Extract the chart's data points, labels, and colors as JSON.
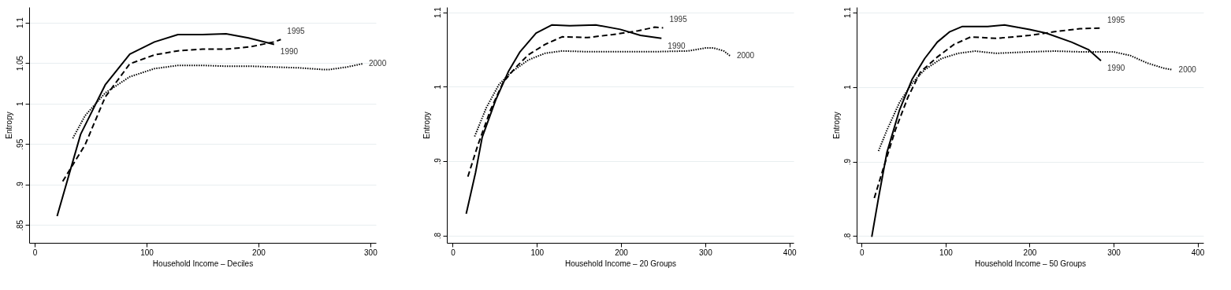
{
  "chart_data": [
    {
      "type": "line",
      "xlabel": "Household Income – Deciles",
      "ylabel": "Entropy",
      "xlim": [
        -5,
        305
      ],
      "ylim": [
        0.828,
        1.119
      ],
      "xticks": [
        0,
        100,
        200,
        300
      ],
      "yticks": [
        {
          "value": 0.85,
          "label": ".85"
        },
        {
          "value": 0.9,
          "label": ".9"
        },
        {
          "value": 0.95,
          "label": ".95"
        },
        1,
        1.05,
        1.1
      ],
      "grid": "y",
      "legend": false,
      "series": [
        {
          "name": "1990",
          "color": "#000000",
          "line_style": "solid",
          "x": [
            20,
            41,
            63,
            85,
            107,
            128,
            150,
            171,
            191,
            214
          ],
          "values": [
            0.861,
            0.962,
            1.023,
            1.061,
            1.076,
            1.085,
            1.085,
            1.086,
            1.081,
            1.073
          ]
        },
        {
          "name": "1995",
          "color": "#000000",
          "line_style": "dashed",
          "x": [
            25,
            45,
            63,
            85,
            107,
            128,
            150,
            171,
            193,
            214,
            220
          ],
          "values": [
            0.904,
            0.949,
            1.008,
            1.049,
            1.06,
            1.065,
            1.067,
            1.067,
            1.07,
            1.076,
            1.079
          ]
        },
        {
          "name": "2000",
          "color": "#000000",
          "line_style": "dotted",
          "x": [
            34,
            45,
            63,
            85,
            107,
            128,
            150,
            171,
            193,
            214,
            236,
            257,
            264,
            279,
            293
          ],
          "values": [
            0.957,
            0.985,
            1.013,
            1.033,
            1.043,
            1.047,
            1.047,
            1.046,
            1.046,
            1.045,
            1.044,
            1.042,
            1.042,
            1.045,
            1.049
          ]
        }
      ]
    },
    {
      "type": "line",
      "xlabel": "Household Income – 20 Groups",
      "ylabel": "Entropy",
      "xlim": [
        -7,
        405
      ],
      "ylim": [
        0.79,
        1.107
      ],
      "xticks": [
        0,
        100,
        200,
        300,
        400
      ],
      "yticks": [
        {
          "value": 0.8,
          "label": ".8"
        },
        {
          "value": 0.9,
          "label": ".9"
        },
        1,
        1.1
      ],
      "grid": "y",
      "legend": false,
      "series": [
        {
          "name": "1990",
          "color": "#000000",
          "line_style": "solid",
          "x": [
            16,
            27,
            35,
            51,
            66,
            80,
            99,
            118,
            139,
            170,
            199,
            223,
            248
          ],
          "values": [
            0.829,
            0.884,
            0.932,
            0.982,
            1.02,
            1.047,
            1.072,
            1.083,
            1.082,
            1.083,
            1.077,
            1.069,
            1.065
          ]
        },
        {
          "name": "1995",
          "color": "#000000",
          "line_style": "dashed",
          "x": [
            18,
            30,
            45,
            60,
            75,
            90,
            110,
            130,
            160,
            190,
            220,
            240,
            250
          ],
          "values": [
            0.879,
            0.922,
            0.969,
            1.006,
            1.026,
            1.043,
            1.057,
            1.067,
            1.066,
            1.07,
            1.075,
            1.08,
            1.079
          ]
        },
        {
          "name": "2000",
          "color": "#000000",
          "line_style": "dotted",
          "x": [
            26,
            40,
            55,
            70,
            90,
            110,
            130,
            160,
            200,
            240,
            280,
            300,
            310,
            322,
            330
          ],
          "values": [
            0.933,
            0.972,
            1.003,
            1.02,
            1.036,
            1.045,
            1.048,
            1.047,
            1.047,
            1.047,
            1.048,
            1.052,
            1.052,
            1.048,
            1.041
          ]
        }
      ]
    },
    {
      "type": "line",
      "xlabel": "Household Income – 50 Groups",
      "ylabel": "Entropy",
      "xlim": [
        -6,
        407
      ],
      "ylim": [
        0.791,
        1.107
      ],
      "xticks": [
        0,
        100,
        200,
        300,
        400
      ],
      "yticks": [
        {
          "value": 0.8,
          "label": ".8"
        },
        {
          "value": 0.9,
          "label": ".9"
        },
        1,
        1.1
      ],
      "grid": "y",
      "legend": false,
      "series": [
        {
          "name": "1990",
          "color": "#000000",
          "line_style": "solid",
          "x": [
            12,
            20,
            30,
            45,
            60,
            75,
            90,
            105,
            120,
            150,
            170,
            200,
            220,
            250,
            270,
            285
          ],
          "values": [
            0.799,
            0.851,
            0.912,
            0.969,
            1.01,
            1.038,
            1.06,
            1.074,
            1.081,
            1.081,
            1.083,
            1.077,
            1.072,
            1.06,
            1.05,
            1.035
          ]
        },
        {
          "name": "1995",
          "color": "#000000",
          "line_style": "dashed",
          "x": [
            15,
            25,
            40,
            55,
            70,
            90,
            110,
            130,
            160,
            200,
            230,
            260,
            285
          ],
          "values": [
            0.851,
            0.888,
            0.942,
            0.986,
            1.02,
            1.04,
            1.057,
            1.067,
            1.065,
            1.069,
            1.074,
            1.078,
            1.079
          ]
        },
        {
          "name": "2000",
          "color": "#000000",
          "line_style": "dotted",
          "x": [
            20,
            30,
            45,
            60,
            75,
            95,
            115,
            135,
            160,
            200,
            230,
            260,
            300,
            320,
            340,
            360,
            370
          ],
          "values": [
            0.914,
            0.942,
            0.979,
            1.005,
            1.023,
            1.038,
            1.045,
            1.048,
            1.045,
            1.047,
            1.048,
            1.047,
            1.047,
            1.042,
            1.032,
            1.025,
            1.023
          ]
        }
      ]
    }
  ]
}
